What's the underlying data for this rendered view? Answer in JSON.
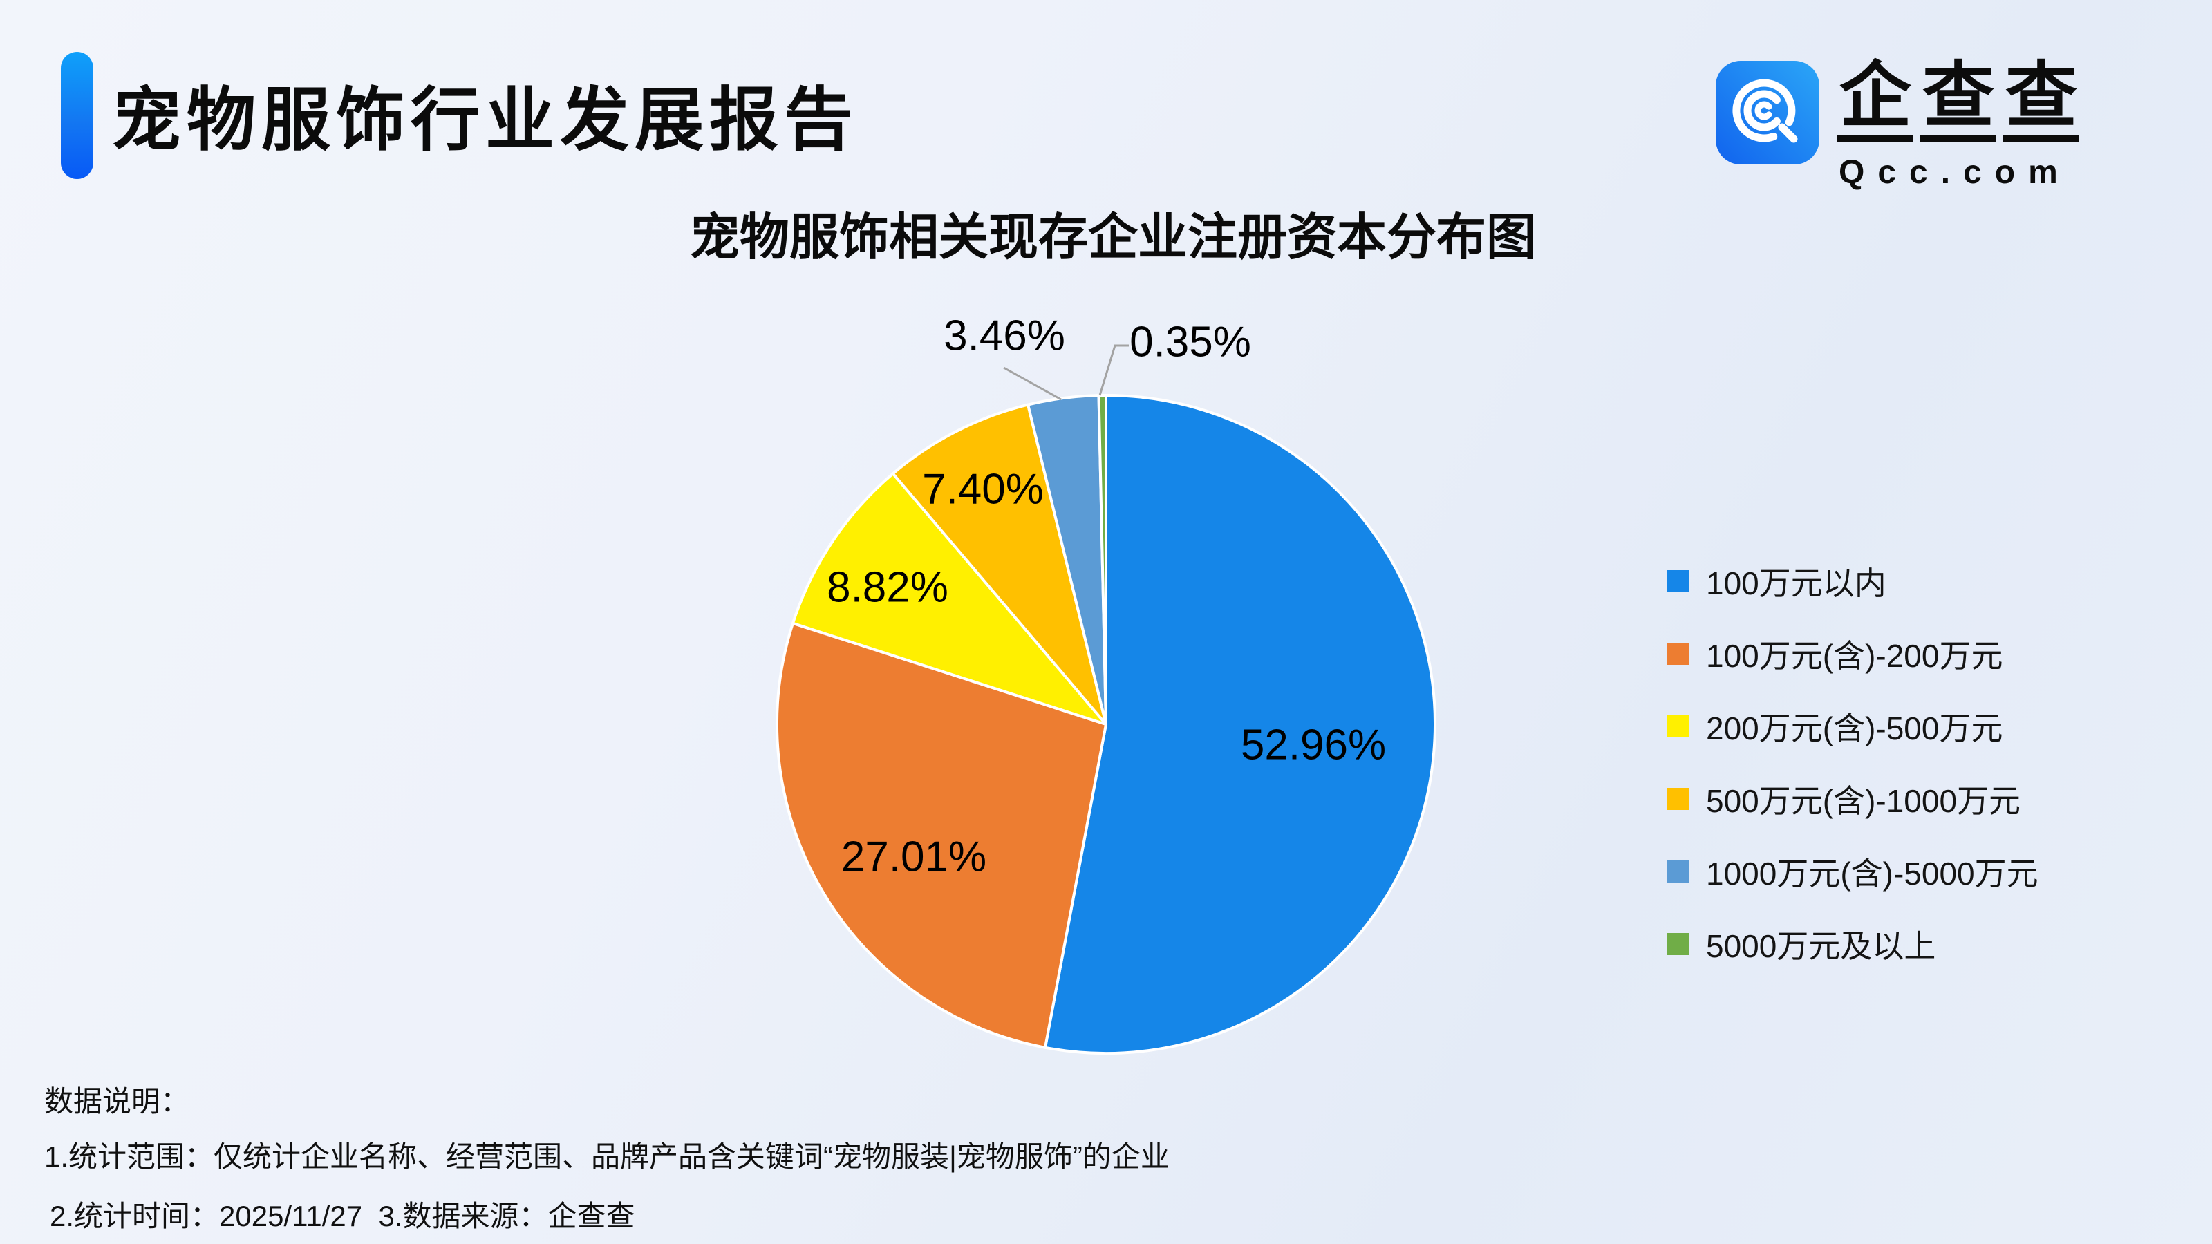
{
  "page": {
    "report_title": "宠物服饰行业发展报告"
  },
  "logo": {
    "brand_chars": [
      "企",
      "查",
      "查"
    ],
    "domain": "Qcc.com"
  },
  "theme": {
    "accent_blue": "#0B6CF5",
    "background_tint": "#EAF0F9",
    "leader_line_gray": "#A3A3A3"
  },
  "chart_data": {
    "type": "pie",
    "title": "宠物服饰相关现存企业注册资本分布图",
    "categories": [
      "100万元以内",
      "100万元(含)-200万元",
      "200万元(含)-500万元",
      "500万元(含)-1000万元",
      "1000万元(含)-5000万元",
      "5000万元及以上"
    ],
    "values": [
      52.96,
      27.01,
      8.82,
      7.4,
      3.46,
      0.35
    ],
    "unit": "%",
    "display_labels": [
      "52.96%",
      "27.01%",
      "8.82%",
      "7.40%",
      "3.46%",
      "0.35%"
    ],
    "colors": [
      "#1586E8",
      "#ED7D31",
      "#FFF000",
      "#FFC000",
      "#5B9BD5",
      "#70AD47"
    ],
    "legend_position": "right",
    "start_angle": "12 o'clock, clockwise"
  },
  "notes": {
    "heading": "数据说明：",
    "line1": "1.统计范围：仅统计企业名称、经营范围、品牌产品含关键词“宠物服装|宠物服饰”的企业",
    "line2": "2.统计时间：2025/11/27  3.数据来源：企查查"
  }
}
